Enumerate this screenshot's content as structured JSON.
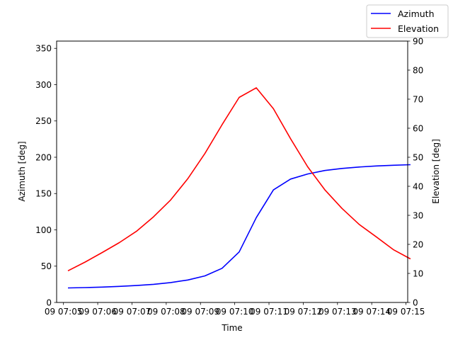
{
  "chart_data": {
    "type": "line",
    "title": "",
    "xlabel": "Time",
    "ylabel_left": "Azimuth [deg]",
    "ylabel_right": "Elevation [deg]",
    "x_tick_labels": [
      "09 07:05",
      "09 07:06",
      "09 07:07",
      "09 07:08",
      "09 07:09",
      "09 07:10",
      "09 07:11",
      "09 07:12",
      "09 07:13",
      "09 07:14",
      "09 07:15"
    ],
    "x_range_minutes": [
      4.8,
      15.05
    ],
    "x_minutes": [
      5.125,
      5.625,
      6.125,
      6.625,
      7.125,
      7.625,
      8.125,
      8.625,
      9.125,
      9.625,
      10.125,
      10.625,
      11.125,
      11.625,
      12.125,
      12.625,
      13.125,
      13.625,
      14.125,
      14.625,
      15.125
    ],
    "y_left_range": [
      0,
      360
    ],
    "y_left_ticks": [
      0,
      50,
      100,
      150,
      200,
      250,
      300,
      350
    ],
    "y_right_range": [
      0,
      90
    ],
    "y_right_ticks": [
      0,
      10,
      20,
      30,
      40,
      50,
      60,
      70,
      80,
      90
    ],
    "legend_position": "top-right",
    "grid": false,
    "series": [
      {
        "name": "Azimuth",
        "axis": "left",
        "color": "#0000ff",
        "x": [
          5.13,
          5.63,
          6.13,
          6.63,
          7.13,
          7.63,
          8.13,
          8.63,
          9.13,
          9.63,
          10.13,
          10.63,
          11.13,
          11.63,
          12.13,
          12.63,
          13.13,
          13.63,
          14.13,
          14.63,
          15.13
        ],
        "values": [
          20,
          20.5,
          21.2,
          22.1,
          23.3,
          25,
          27.4,
          30.9,
          36.6,
          47,
          69.6,
          116.9,
          155,
          170,
          177,
          181.8,
          184.6,
          186.5,
          188,
          189,
          189.8
        ]
      },
      {
        "name": "Elevation",
        "axis": "right",
        "color": "#ff0000",
        "x": [
          5.13,
          5.63,
          6.13,
          6.63,
          7.13,
          7.63,
          8.13,
          8.63,
          9.13,
          9.63,
          10.13,
          10.63,
          11.13,
          11.63,
          12.13,
          12.63,
          13.13,
          13.63,
          14.13,
          14.63,
          15.13
        ],
        "values": [
          10.9,
          13.9,
          17.2,
          20.6,
          24.5,
          29.5,
          35.3,
          42.6,
          51.3,
          61.2,
          70.6,
          73.9,
          66.7,
          56.4,
          46.7,
          38.8,
          32.4,
          26.9,
          22.6,
          18.2,
          15
        ]
      }
    ]
  }
}
